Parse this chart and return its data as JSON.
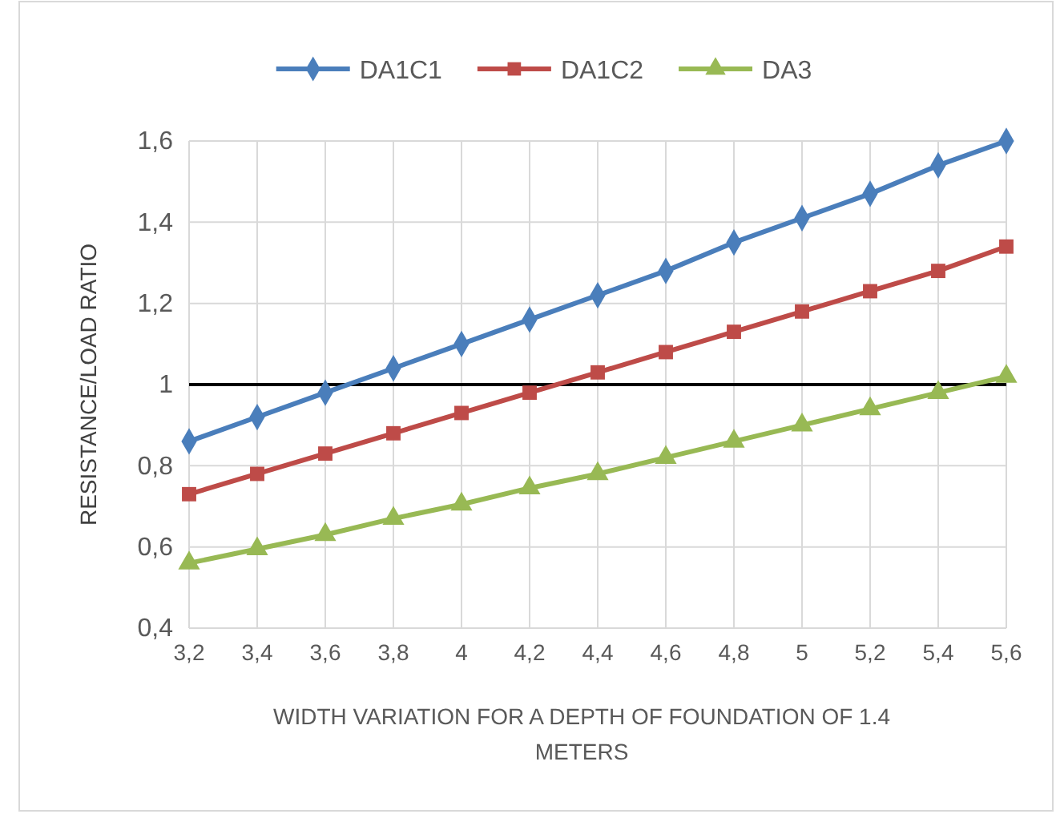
{
  "chart_data": {
    "type": "line",
    "xlabel": "WIDTH VARIATION FOR A DEPTH  OF FOUNDATION OF 1.4 METERS",
    "ylabel": "RESISTANCE/LOAD RATIO",
    "categories": [
      "3,2",
      "3,4",
      "3,6",
      "3,8",
      "4",
      "4,2",
      "4,4",
      "4,6",
      "4,8",
      "5",
      "5,2",
      "5,4",
      "5,6"
    ],
    "series": [
      {
        "name": "DA1C1",
        "color": "#4a7ebb",
        "marker": "diamond",
        "values": [
          0.86,
          0.92,
          0.98,
          1.04,
          1.1,
          1.16,
          1.22,
          1.28,
          1.35,
          1.41,
          1.47,
          1.54,
          1.6
        ]
      },
      {
        "name": "DA1C2",
        "color": "#be4b48",
        "marker": "square",
        "values": [
          0.73,
          0.78,
          0.83,
          0.88,
          0.93,
          0.98,
          1.03,
          1.08,
          1.13,
          1.18,
          1.23,
          1.28,
          1.34
        ]
      },
      {
        "name": "DA3",
        "color": "#98b954",
        "marker": "triangle",
        "values": [
          0.56,
          0.595,
          0.63,
          0.67,
          0.705,
          0.745,
          0.78,
          0.82,
          0.86,
          0.9,
          0.94,
          0.98,
          1.02
        ]
      }
    ],
    "ylim": [
      0.4,
      1.6
    ],
    "yticks": [
      {
        "value": 0.4,
        "label": "0,4"
      },
      {
        "value": 0.6,
        "label": "0,6"
      },
      {
        "value": 0.8,
        "label": "0,8"
      },
      1,
      {
        "value": 1.2,
        "label": "1,2"
      },
      {
        "value": 1.4,
        "label": "1,4"
      },
      {
        "value": 1.6,
        "label": "1,6"
      }
    ],
    "ref_lines": [
      {
        "axis": "y",
        "value": 1,
        "color": "#000000"
      }
    ],
    "grid": true,
    "legend": "top"
  }
}
